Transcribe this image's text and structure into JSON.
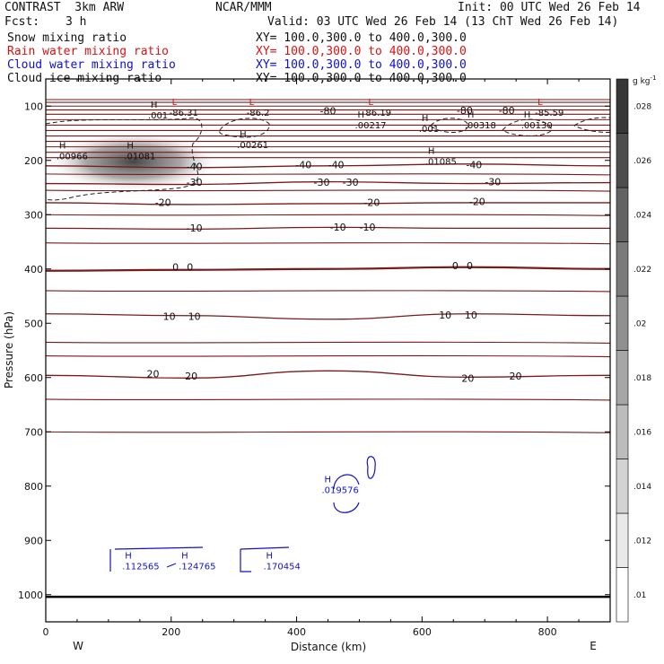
{
  "header": {
    "title": "CONTRAST  3km ARW",
    "center": "NCAR/MMM",
    "init": "Init: 00 UTC Wed 26 Feb 14",
    "fcst_label": "Fcst:",
    "fcst_value": "3 h",
    "valid": "Valid: 03 UTC Wed 26 Feb 14 (13 ChT Wed 26 Feb 14)"
  },
  "fields": [
    {
      "name": "Snow mixing ratio",
      "xy": "XY= 100.0,300.0 to 400.0,300.0",
      "color": "#111111"
    },
    {
      "name": "Rain water mixing ratio",
      "xy": "XY= 100.0,300.0 to 400.0,300.0",
      "color": "#dd1111"
    },
    {
      "name": "Cloud water mixing ratio",
      "xy": "XY= 100.0,300.0 to 400.0,300.0",
      "color": "#1111cc"
    },
    {
      "name": "Cloud ice mixing ratio",
      "xy": "XY= 100.0,300.0 to 400.0,300.0",
      "color": "#111111"
    }
  ],
  "chart_data": {
    "type": "contour",
    "xlabel": "Distance (km)",
    "ylabel": "Pressure (hPa)",
    "xlim": [
      0,
      900
    ],
    "ylim": [
      1050,
      50
    ],
    "x_ticks": [
      0,
      200,
      400,
      600,
      800
    ],
    "y_ticks": [
      100,
      200,
      300,
      400,
      500,
      600,
      700,
      800,
      900,
      1000
    ],
    "x_end_labels": {
      "left": "W",
      "right": "E"
    },
    "colorbar": {
      "unit": "g kg",
      "unit_exp": "-1",
      "ticks": [
        ".01",
        ".012",
        ".014",
        ".016",
        ".018",
        ".02",
        ".022",
        ".024",
        ".026",
        ".028"
      ],
      "levels": [
        0.01,
        0.012,
        0.014,
        0.016,
        0.018,
        0.02,
        0.022,
        0.024,
        0.026,
        0.028
      ]
    },
    "temperature_contours": [
      {
        "label": "-80",
        "p": 107
      },
      {
        "label": "-40",
        "p": 210
      },
      {
        "label": "-30",
        "p": 241
      },
      {
        "label": "-20",
        "p": 278
      },
      {
        "label": "-10",
        "p": 325
      },
      {
        "label": "0",
        "p": 400
      },
      {
        "label": "10",
        "p": 486
      },
      {
        "label": "20",
        "p": 596
      }
    ],
    "temperature_labels": [
      {
        "text": "-80",
        "x": 450,
        "p": 109
      },
      {
        "text": "-80",
        "x": 668,
        "p": 108
      },
      {
        "text": "-80",
        "x": 735,
        "p": 108
      },
      {
        "text": "-40",
        "x": 237,
        "p": 211
      },
      {
        "text": "-40",
        "x": 411,
        "p": 208
      },
      {
        "text": "-40",
        "x": 463,
        "p": 208
      },
      {
        "text": "-40",
        "x": 683,
        "p": 208
      },
      {
        "text": "-30",
        "x": 237,
        "p": 240
      },
      {
        "text": "-30",
        "x": 440,
        "p": 240
      },
      {
        "text": "-30",
        "x": 486,
        "p": 240
      },
      {
        "text": "-30",
        "x": 713,
        "p": 239
      },
      {
        "text": "-20",
        "x": 187,
        "p": 277
      },
      {
        "text": "-20",
        "x": 520,
        "p": 277
      },
      {
        "text": "-20",
        "x": 688,
        "p": 276
      },
      {
        "text": "-10",
        "x": 237,
        "p": 324
      },
      {
        "text": "-10",
        "x": 466,
        "p": 323
      },
      {
        "text": "-10",
        "x": 513,
        "p": 323
      },
      {
        "text": "0",
        "x": 207,
        "p": 396
      },
      {
        "text": "0",
        "x": 230,
        "p": 396
      },
      {
        "text": "0",
        "x": 653,
        "p": 394
      },
      {
        "text": "0",
        "x": 676,
        "p": 394
      },
      {
        "text": "10",
        "x": 197,
        "p": 487
      },
      {
        "text": "10",
        "x": 237,
        "p": 487
      },
      {
        "text": "10",
        "x": 637,
        "p": 485
      },
      {
        "text": "10",
        "x": 678,
        "p": 485
      },
      {
        "text": "20",
        "x": 171,
        "p": 593
      },
      {
        "text": "20",
        "x": 232,
        "p": 597
      },
      {
        "text": "20",
        "x": 673,
        "p": 601
      },
      {
        "text": "20",
        "x": 749,
        "p": 597
      }
    ],
    "extrema_temperature": [
      {
        "kind": "L",
        "value": "-86.31",
        "x": 197,
        "p": 108
      },
      {
        "kind": "L",
        "value": "-86.2",
        "x": 320,
        "p": 108
      },
      {
        "kind": "L",
        "value": "86.19",
        "x": 510,
        "p": 108
      },
      {
        "kind": "L",
        "value": "-85.59",
        "x": 780,
        "p": 108
      }
    ],
    "extrema_snow": [
      {
        "kind": "H",
        "value": ".001",
        "x": 163,
        "p": 113
      },
      {
        "kind": "H",
        "value": ".00966",
        "x": 17,
        "p": 188
      },
      {
        "kind": "H",
        "value": ".01081",
        "x": 125,
        "p": 188
      },
      {
        "kind": "H",
        "value": ".00261",
        "x": 305,
        "p": 167
      },
      {
        "kind": "H",
        "value": ".00217",
        "x": 493,
        "p": 131
      },
      {
        "kind": "H",
        "value": ".001",
        "x": 595,
        "p": 138
      },
      {
        "kind": "H",
        "value": ".00318",
        "x": 668,
        "p": 131
      },
      {
        "kind": "H",
        "value": ".00130",
        "x": 758,
        "p": 131
      },
      {
        "kind": "H",
        "value": ".01085",
        "x": 605,
        "p": 198
      }
    ],
    "extrema_cloud_water": [
      {
        "kind": "H",
        "value": ".019576",
        "x": 440,
        "p": 803
      },
      {
        "kind": "H",
        "value": ".112565",
        "x": 122,
        "p": 943
      },
      {
        "kind": "H",
        "value": ".124765",
        "x": 212,
        "p": 943
      },
      {
        "kind": "H",
        "value": ".170454",
        "x": 347,
        "p": 943
      }
    ],
    "snow_max_region": {
      "x": [
        0,
        250
      ],
      "p": [
        160,
        245
      ],
      "peak": 0.02
    }
  }
}
